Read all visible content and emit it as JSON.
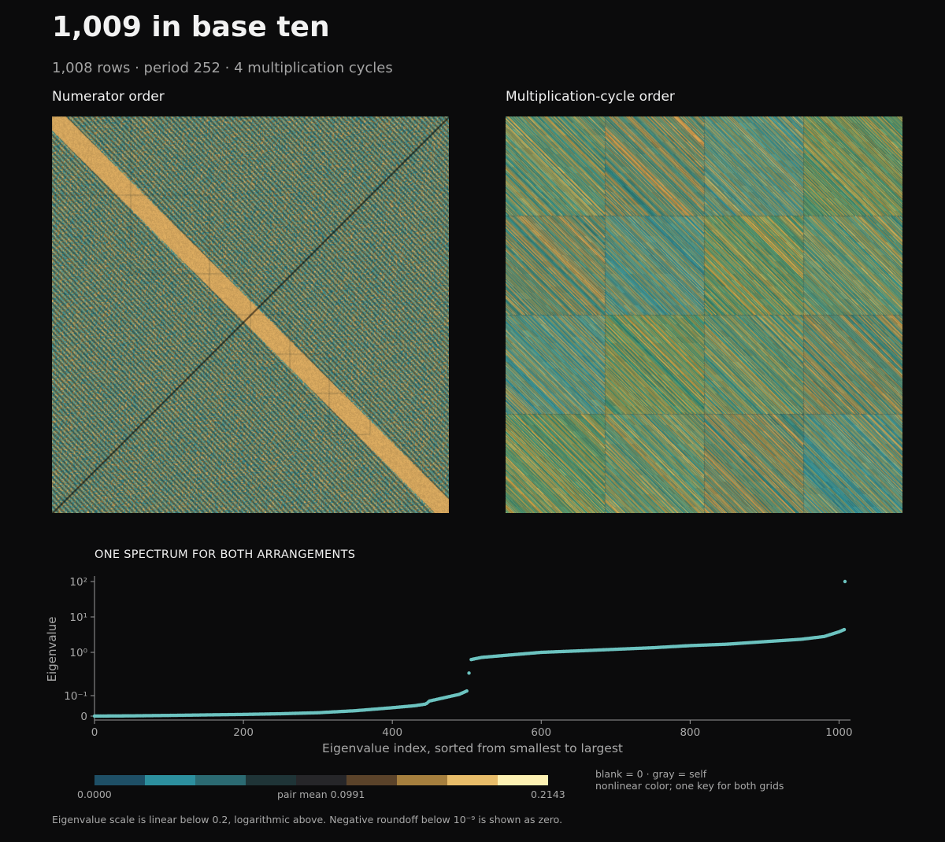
{
  "title": "1,009 in base ten",
  "subtitle": "1,008 rows  ·  period 252  ·  4 multiplication cycles",
  "panels": {
    "left_title": "Numerator order",
    "right_title": "Multiplication-cycle order"
  },
  "chart_data": [
    {
      "type": "heatmap",
      "title": "Numerator order",
      "rows": 1008,
      "cols": 1008,
      "block_size": 252,
      "value_range": [
        0.0,
        0.2143
      ]
    },
    {
      "type": "heatmap",
      "title": "Multiplication-cycle order",
      "rows": 1008,
      "cols": 1008,
      "block_size": 252,
      "block_grid": [
        4,
        4
      ],
      "value_range": [
        0.0,
        0.2143
      ]
    },
    {
      "type": "scatter",
      "title": "ONE SPECTRUM FOR BOTH ARRANGEMENTS",
      "xlabel": "Eigenvalue index, sorted from smallest to largest",
      "ylabel": "Eigenvalue",
      "xlim": [
        0,
        1008
      ],
      "xticks": [
        "0",
        "200",
        "400",
        "600",
        "800",
        "1000"
      ],
      "yticks": [
        "0",
        "10⁻¹",
        "10⁰",
        "10¹",
        "10²"
      ],
      "yscale": "symlog",
      "linthresh": 0.2,
      "series": [
        {
          "color": "#6cc3c0",
          "points": [
            [
              0,
              0.0
            ],
            [
              50,
              0.0015
            ],
            [
              100,
              0.004
            ],
            [
              150,
              0.007
            ],
            [
              200,
              0.01
            ],
            [
              250,
              0.014
            ],
            [
              300,
              0.02
            ],
            [
              350,
              0.032
            ],
            [
              400,
              0.05
            ],
            [
              430,
              0.062
            ],
            [
              445,
              0.072
            ],
            [
              450,
              0.09
            ],
            [
              470,
              0.11
            ],
            [
              490,
              0.13
            ],
            [
              500,
              0.15
            ],
            [
              503,
              0.26
            ],
            [
              505,
              0.62
            ],
            [
              520,
              0.72
            ],
            [
              560,
              0.85
            ],
            [
              600,
              1.0
            ],
            [
              650,
              1.1
            ],
            [
              700,
              1.22
            ],
            [
              750,
              1.35
            ],
            [
              800,
              1.55
            ],
            [
              850,
              1.7
            ],
            [
              900,
              2.0
            ],
            [
              950,
              2.35
            ],
            [
              980,
              2.8
            ],
            [
              1000,
              3.8
            ],
            [
              1007,
              4.4
            ],
            [
              1008,
              100
            ]
          ]
        }
      ]
    }
  ],
  "colorbar": {
    "colors": [
      "#1e4f66",
      "#2c8f9e",
      "#2b6a72",
      "#1f3437",
      "#262629",
      "#5b432a",
      "#a67f3e",
      "#e8bd6a",
      "#fdf1b3"
    ],
    "min_label": "0.0000",
    "mid_label": "pair mean 0.0991",
    "max_label": "0.2143"
  },
  "notes": {
    "line1": "blank = 0 · gray = self",
    "line2": "nonlinear color; one key for both grids"
  },
  "footnote": "Eigenvalue scale is linear below 0.2, logarithmic above. Negative roundoff below 10⁻⁹ is shown as zero."
}
